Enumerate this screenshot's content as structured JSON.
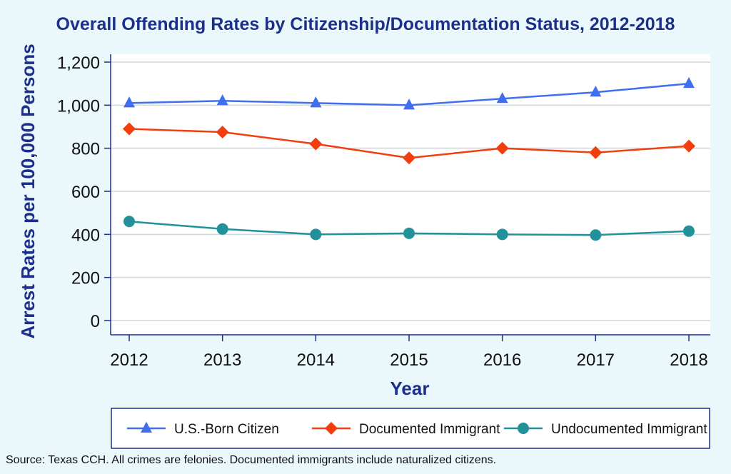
{
  "chart_data": {
    "type": "line",
    "title": "Overall Offending Rates by Citizenship/Documentation Status, 2012-2018",
    "xlabel": "Year",
    "ylabel": "Arrest Rates per 100,000 Persons",
    "categories": [
      "2012",
      "2013",
      "2014",
      "2015",
      "2016",
      "2017",
      "2018"
    ],
    "y_ticks": [
      "0",
      "200",
      "400",
      "600",
      "800",
      "1,000",
      "1,200"
    ],
    "ylim": [
      0,
      1200
    ],
    "grid": true,
    "legend_position": "bottom",
    "series": [
      {
        "name": "U.S.-Born Citizen",
        "marker": "triangle",
        "color": "#3f6fee",
        "values": [
          1010,
          1020,
          1010,
          1000,
          1030,
          1060,
          1100
        ]
      },
      {
        "name": "Documented Immigrant",
        "marker": "diamond",
        "color": "#f23e0e",
        "values": [
          890,
          875,
          820,
          755,
          800,
          780,
          810
        ]
      },
      {
        "name": "Undocumented Immigrant",
        "marker": "circle",
        "color": "#21919a",
        "values": [
          460,
          425,
          400,
          405,
          400,
          397,
          415
        ]
      }
    ]
  },
  "colors": {
    "title": "#1c2f8a",
    "axis": "#1c2f8a",
    "grid": "#cfd8de",
    "plot_background": "#ffffff",
    "page_background": "#eaf7fb"
  },
  "source_note": "Source: Texas CCH. All crimes are felonies. Documented immigrants include naturalized citizens."
}
